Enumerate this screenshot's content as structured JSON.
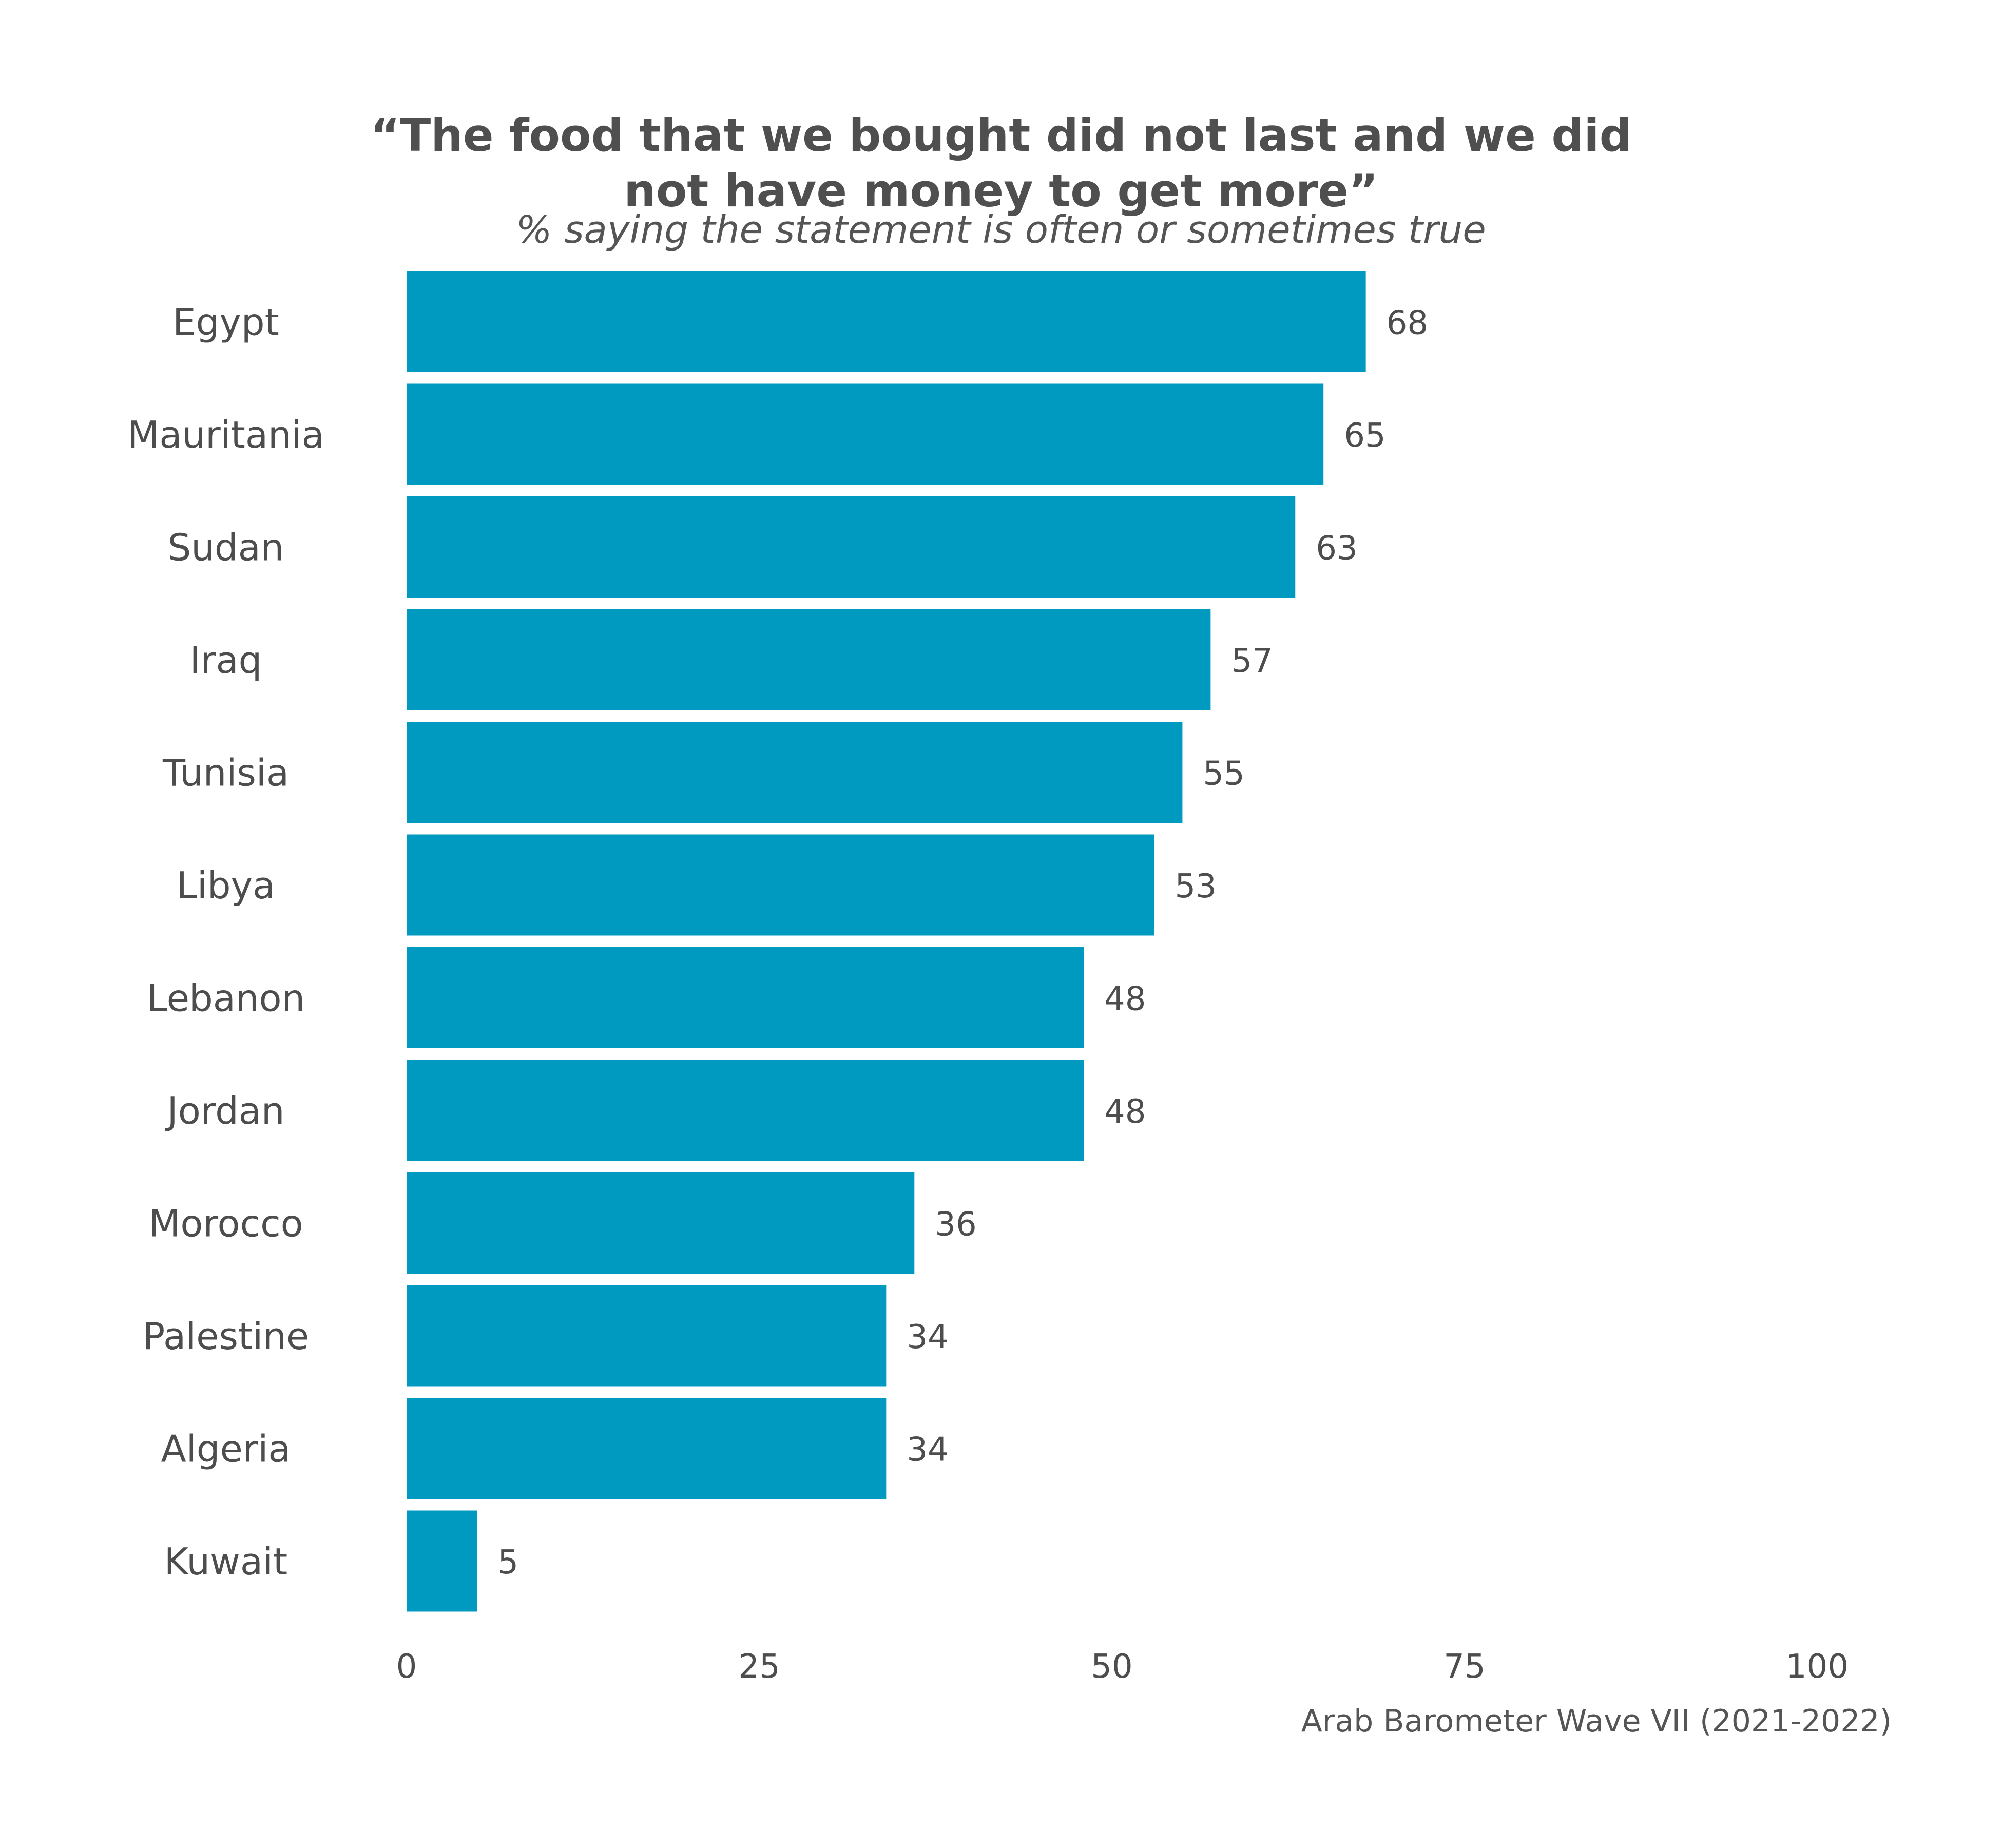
{
  "title_lines": [
    "“The food that we bought did not last and we did",
    "not have money to get more”"
  ],
  "subtitle": "% saying the statement is often or sometimes true",
  "source": "Arab Barometer Wave VII (2021-2022)",
  "chart_data": {
    "type": "bar",
    "orientation": "horizontal",
    "title": "“The food that we bought did not last and we did not have money to get more”",
    "subtitle": "% saying the statement is often or sometimes true",
    "categories": [
      "Egypt",
      "Mauritania",
      "Sudan",
      "Iraq",
      "Tunisia",
      "Libya",
      "Lebanon",
      "Jordan",
      "Morocco",
      "Palestine",
      "Algeria",
      "Kuwait"
    ],
    "values": [
      68,
      65,
      63,
      57,
      55,
      53,
      48,
      48,
      36,
      34,
      34,
      5
    ],
    "xlim": [
      0,
      100
    ],
    "xticks": [
      0,
      25,
      50,
      75,
      100
    ],
    "grid": false,
    "bar_color": "#0099c0",
    "data_labels": true
  }
}
